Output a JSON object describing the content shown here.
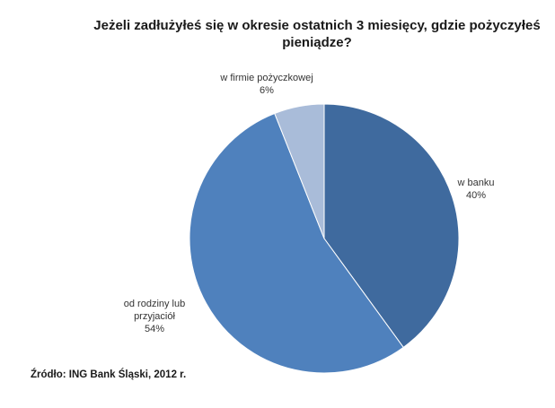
{
  "chart_data": {
    "type": "pie",
    "title_lines": [
      "Jeżeli zadłużyłeś się w okresie ostatnich  3 miesięcy, gdzie pożyczyłeś",
      "pieniądze?"
    ],
    "slices": [
      {
        "label_lines": [
          "w banku"
        ],
        "value": 40,
        "value_label": "40%",
        "color": "#3f6a9e"
      },
      {
        "label_lines": [
          "od rodziny lub",
          "przyjaciół"
        ],
        "value": 54,
        "value_label": "54%",
        "color": "#4f81bd"
      },
      {
        "label_lines": [
          "w firmie pożyczkowej"
        ],
        "value": 6,
        "value_label": "6%",
        "color": "#a9bcd9"
      }
    ],
    "legend": "none"
  },
  "source": "Źródło: ING Bank Śląski, 2012 r."
}
